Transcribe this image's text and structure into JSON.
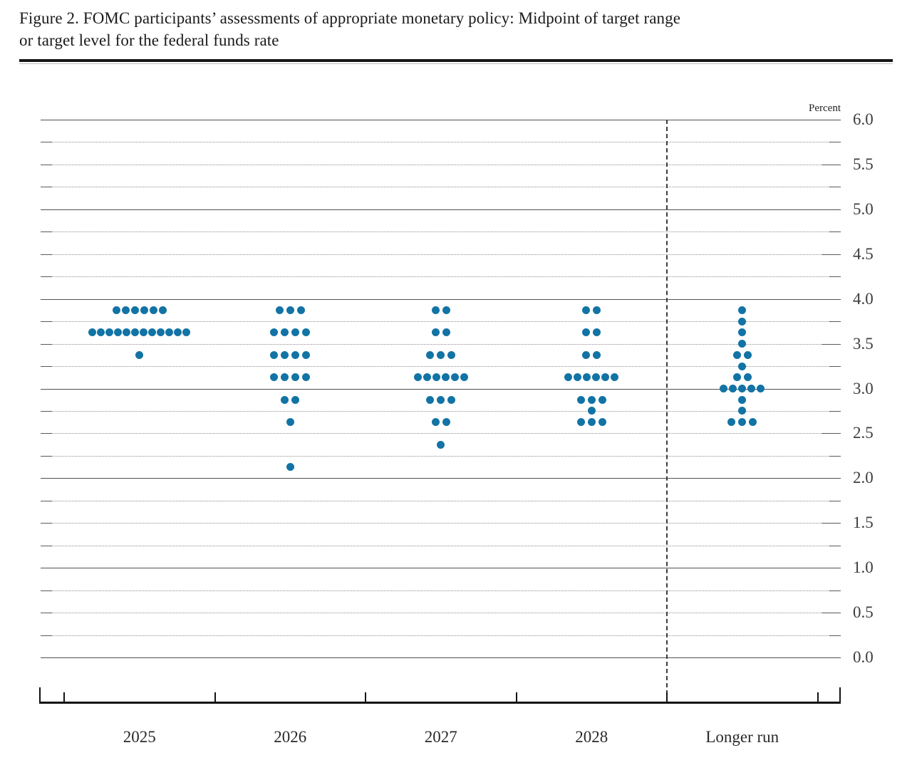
{
  "figure": {
    "title_line1": "Figure 2. FOMC participants’ assessments of appropriate monetary policy: Midpoint of target range",
    "title_line2": "or target level for the federal funds rate"
  },
  "chart_data": {
    "type": "scatter",
    "subtype": "fomc-dot-plot",
    "title": "Figure 2. FOMC participants’ assessments of appropriate monetary policy: Midpoint of target range or target level for the federal funds rate",
    "ylabel": "Percent",
    "ylim": [
      0.0,
      6.0
    ],
    "y_label_step": 0.5,
    "y_grid_step": 0.25,
    "grid": "on",
    "legend": null,
    "y_tick_labels": [
      "6.0",
      "5.5",
      "5.0",
      "4.5",
      "4.0",
      "3.5",
      "3.0",
      "2.5",
      "2.0",
      "1.5",
      "1.0",
      "0.5",
      "0.0"
    ],
    "categories": [
      "2025",
      "2026",
      "2027",
      "2028",
      "Longer run"
    ],
    "series": [
      {
        "name": "2025",
        "dots": [
          {
            "rate": 3.875,
            "count": 6
          },
          {
            "rate": 3.625,
            "count": 12
          },
          {
            "rate": 3.375,
            "count": 1
          }
        ]
      },
      {
        "name": "2026",
        "dots": [
          {
            "rate": 3.875,
            "count": 3
          },
          {
            "rate": 3.625,
            "count": 4
          },
          {
            "rate": 3.375,
            "count": 4
          },
          {
            "rate": 3.125,
            "count": 4
          },
          {
            "rate": 2.875,
            "count": 2
          },
          {
            "rate": 2.625,
            "count": 1
          },
          {
            "rate": 2.125,
            "count": 1
          }
        ]
      },
      {
        "name": "2027",
        "dots": [
          {
            "rate": 3.875,
            "count": 2
          },
          {
            "rate": 3.625,
            "count": 2
          },
          {
            "rate": 3.375,
            "count": 3
          },
          {
            "rate": 3.125,
            "count": 6
          },
          {
            "rate": 2.875,
            "count": 3
          },
          {
            "rate": 2.625,
            "count": 2
          },
          {
            "rate": 2.375,
            "count": 1
          }
        ]
      },
      {
        "name": "2028",
        "dots": [
          {
            "rate": 3.875,
            "count": 2
          },
          {
            "rate": 3.625,
            "count": 2
          },
          {
            "rate": 3.375,
            "count": 2
          },
          {
            "rate": 3.125,
            "count": 6
          },
          {
            "rate": 2.875,
            "count": 3
          },
          {
            "rate": 2.75,
            "count": 1
          },
          {
            "rate": 2.625,
            "count": 3
          }
        ]
      },
      {
        "name": "Longer run",
        "dots": [
          {
            "rate": 3.875,
            "count": 1
          },
          {
            "rate": 3.75,
            "count": 1
          },
          {
            "rate": 3.625,
            "count": 1
          },
          {
            "rate": 3.5,
            "count": 1
          },
          {
            "rate": 3.375,
            "count": 2
          },
          {
            "rate": 3.25,
            "count": 1
          },
          {
            "rate": 3.125,
            "count": 2
          },
          {
            "rate": 3.0,
            "count": 5
          },
          {
            "rate": 2.875,
            "count": 1
          },
          {
            "rate": 2.75,
            "count": 1
          },
          {
            "rate": 2.625,
            "count": 3
          }
        ]
      }
    ]
  },
  "colors": {
    "dot": "#1273a5",
    "grid_major": "#505050",
    "grid_minor": "#8e8e8e",
    "axis": "#121212",
    "text": "#1c1c1c"
  }
}
